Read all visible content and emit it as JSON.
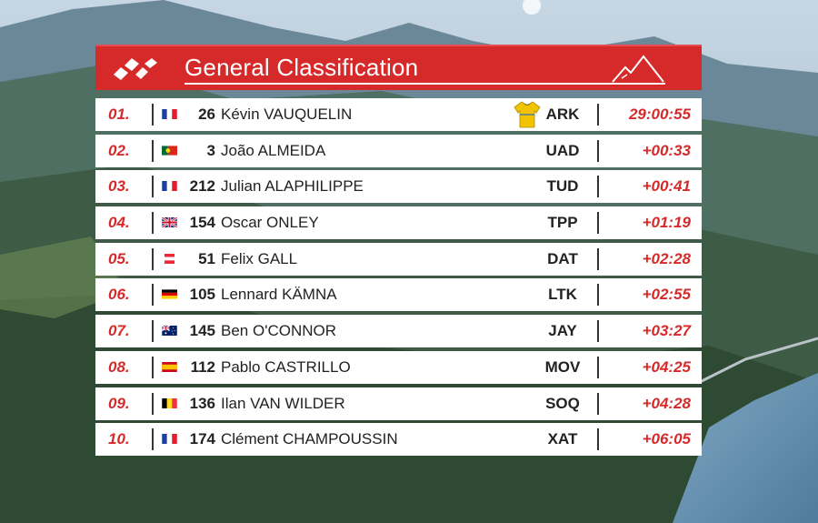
{
  "header": {
    "title": "General Classification"
  },
  "leader_jersey_color": "#f2c300",
  "standings": [
    {
      "pos": "01.",
      "flag": "fr",
      "number": "26",
      "name": "Kévin VAUQUELIN",
      "team": "ARK",
      "time": "29:00:55",
      "jersey": true
    },
    {
      "pos": "02.",
      "flag": "pt",
      "number": "3",
      "name": "João ALMEIDA",
      "team": "UAD",
      "time": "+00:33"
    },
    {
      "pos": "03.",
      "flag": "fr",
      "number": "212",
      "name": "Julian ALAPHILIPPE",
      "team": "TUD",
      "time": "+00:41"
    },
    {
      "pos": "04.",
      "flag": "gb",
      "number": "154",
      "name": "Oscar ONLEY",
      "team": "TPP",
      "time": "+01:19"
    },
    {
      "pos": "05.",
      "flag": "at",
      "number": "51",
      "name": "Felix GALL",
      "team": "DAT",
      "time": "+02:28"
    },
    {
      "pos": "06.",
      "flag": "de",
      "number": "105",
      "name": "Lennard KÄMNA",
      "team": "LTK",
      "time": "+02:55"
    },
    {
      "pos": "07.",
      "flag": "au",
      "number": "145",
      "name": "Ben O'CONNOR",
      "team": "JAY",
      "time": "+03:27"
    },
    {
      "pos": "08.",
      "flag": "es",
      "number": "112",
      "name": "Pablo CASTRILLO",
      "team": "MOV",
      "time": "+04:25"
    },
    {
      "pos": "09.",
      "flag": "be",
      "number": "136",
      "name": "Ilan VAN WILDER",
      "team": "SOQ",
      "time": "+04:28"
    },
    {
      "pos": "10.",
      "flag": "fr",
      "number": "174",
      "name": "Clément CHAMPOUSSIN",
      "team": "XAT",
      "time": "+06:05"
    }
  ]
}
